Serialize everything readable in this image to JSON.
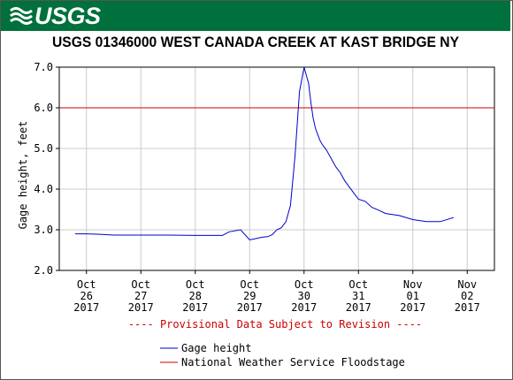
{
  "brand": "USGS",
  "title": "USGS 01346000 WEST CANADA CREEK AT KAST BRIDGE NY",
  "colors": {
    "header": "#00703c",
    "series": "#0000cc",
    "floodstage": "#cc0000",
    "provisional": "#cc0000"
  },
  "chart_data": {
    "type": "line",
    "ylabel": "Gage height, feet",
    "ylim": [
      2.0,
      7.0
    ],
    "yticks": [
      "2.0",
      "3.0",
      "4.0",
      "5.0",
      "6.0",
      "7.0"
    ],
    "xticks": [
      {
        "month": "Oct",
        "day": "26",
        "year": "2017"
      },
      {
        "month": "Oct",
        "day": "27",
        "year": "2017"
      },
      {
        "month": "Oct",
        "day": "28",
        "year": "2017"
      },
      {
        "month": "Oct",
        "day": "29",
        "year": "2017"
      },
      {
        "month": "Oct",
        "day": "30",
        "year": "2017"
      },
      {
        "month": "Oct",
        "day": "31",
        "year": "2017"
      },
      {
        "month": "Nov",
        "day": "01",
        "year": "2017"
      },
      {
        "month": "Nov",
        "day": "02",
        "year": "2017"
      }
    ],
    "grid": true,
    "series": [
      {
        "name": "Gage height",
        "x": [
          "2017-10-25 19:00",
          "2017-10-26 00:00",
          "2017-10-26 06:00",
          "2017-10-26 12:00",
          "2017-10-27 00:00",
          "2017-10-27 12:00",
          "2017-10-28 00:00",
          "2017-10-28 12:00",
          "2017-10-28 15:00",
          "2017-10-28 20:00",
          "2017-10-29 00:00",
          "2017-10-29 04:00",
          "2017-10-29 06:00",
          "2017-10-29 08:00",
          "2017-10-29 10:00",
          "2017-10-29 12:00",
          "2017-10-29 14:00",
          "2017-10-29 16:00",
          "2017-10-29 18:00",
          "2017-10-29 20:00",
          "2017-10-29 22:00",
          "2017-10-30 00:00",
          "2017-10-30 02:00",
          "2017-10-30 03:00",
          "2017-10-30 04:00",
          "2017-10-30 05:00",
          "2017-10-30 06:00",
          "2017-10-30 07:00",
          "2017-10-30 08:00",
          "2017-10-30 10:00",
          "2017-10-30 12:00",
          "2017-10-30 14:00",
          "2017-10-30 16:00",
          "2017-10-30 18:00",
          "2017-10-30 20:00",
          "2017-10-30 22:00",
          "2017-10-31 00:00",
          "2017-10-31 03:00",
          "2017-10-31 06:00",
          "2017-10-31 09:00",
          "2017-10-31 12:00",
          "2017-10-31 18:00",
          "2017-11-01 00:00",
          "2017-11-01 06:00",
          "2017-11-01 12:00",
          "2017-11-01 18:00"
        ],
        "y": [
          2.9,
          2.9,
          2.89,
          2.87,
          2.87,
          2.87,
          2.86,
          2.86,
          2.95,
          3.0,
          2.75,
          2.8,
          2.82,
          2.83,
          2.88,
          3.0,
          3.05,
          3.2,
          3.6,
          4.8,
          6.4,
          7.0,
          6.6,
          6.15,
          5.75,
          5.5,
          5.35,
          5.2,
          5.1,
          4.95,
          4.75,
          4.55,
          4.4,
          4.2,
          4.05,
          3.9,
          3.75,
          3.7,
          3.55,
          3.48,
          3.4,
          3.35,
          3.25,
          3.2,
          3.2,
          3.3
        ]
      },
      {
        "name": "National Weather Service Floodstage",
        "y": [
          6.0
        ]
      }
    ],
    "annotation": "---- Provisional Data Subject to Revision ----",
    "legend": [
      "Gage height",
      "National Weather Service Floodstage"
    ]
  }
}
